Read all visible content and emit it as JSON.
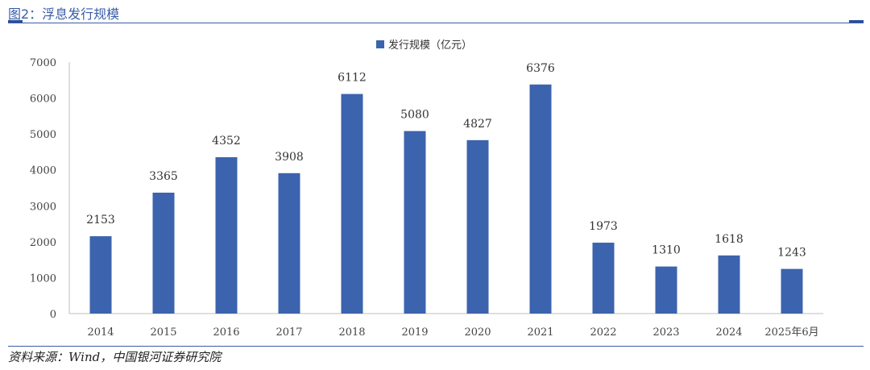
{
  "figure": {
    "title": "图2：浮息发行规模",
    "source": "资料来源：Wind，中国银河证券研究院"
  },
  "colors": {
    "bar": "#3c63ad",
    "title": "#3a5da8"
  },
  "chart_data": {
    "type": "bar",
    "categories": [
      "2014",
      "2015",
      "2016",
      "2017",
      "2018",
      "2019",
      "2020",
      "2021",
      "2022",
      "2023",
      "2024",
      "2025年6月"
    ],
    "series": [
      {
        "name": "发行规模（亿元）",
        "values": [
          2153,
          3365,
          4352,
          3908,
          6112,
          5080,
          4827,
          6376,
          1973,
          1310,
          1618,
          1243
        ]
      }
    ],
    "ylim": [
      0,
      7000
    ],
    "yticks": [
      0,
      1000,
      2000,
      3000,
      4000,
      5000,
      6000,
      7000
    ],
    "legend": "top-center",
    "grid": false
  }
}
